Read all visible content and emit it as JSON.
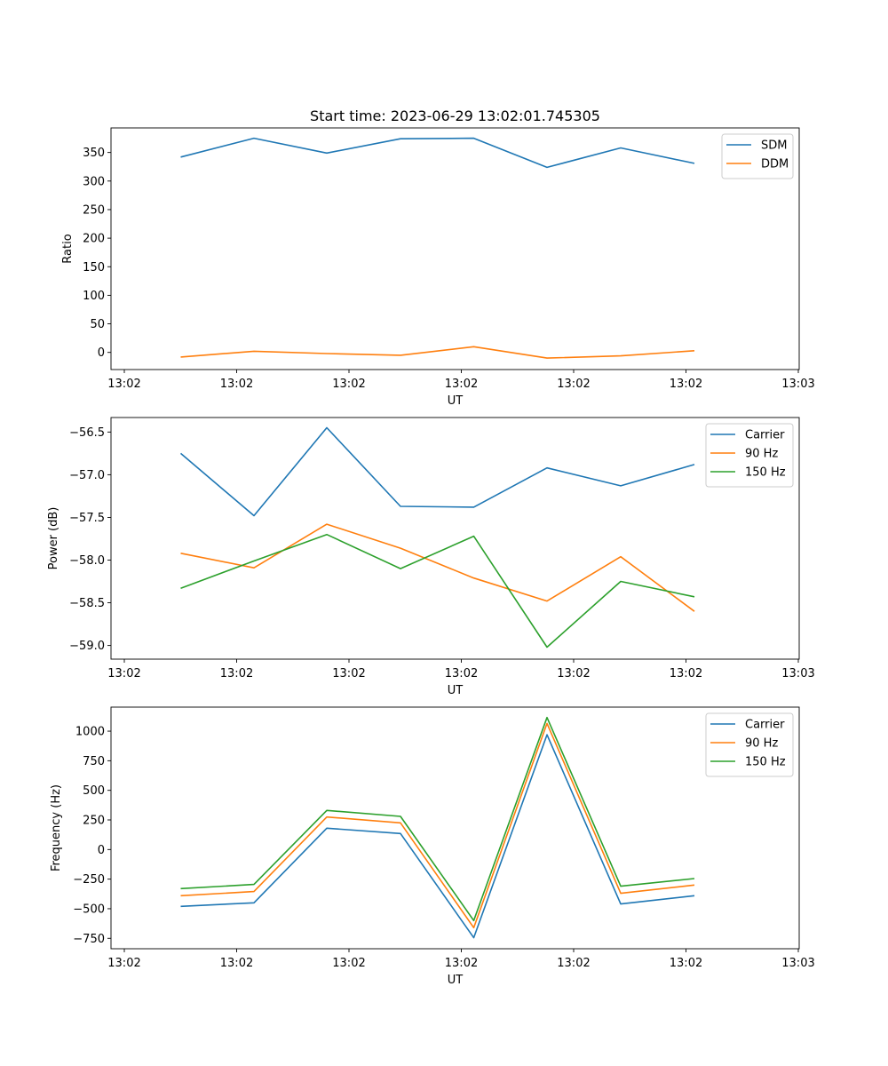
{
  "figure": {
    "title": "Start time: 2023-06-29 13:02:01.745305"
  },
  "chart_data": [
    {
      "type": "line",
      "title": "Start time: 2023-06-29 13:02:01.745305",
      "xlabel": "UT",
      "ylabel": "Ratio",
      "x_tick_labels": [
        "13:02",
        "13:02",
        "13:02",
        "13:02",
        "13:02",
        "13:02",
        "13:03"
      ],
      "ylim": [
        -30,
        393
      ],
      "yticks": [
        0,
        50,
        100,
        150,
        200,
        250,
        300,
        350
      ],
      "ytick_labels": [
        "0",
        "50",
        "100",
        "150",
        "200",
        "250",
        "300",
        "350"
      ],
      "legend_position": "upper right",
      "series": [
        {
          "name": "SDM",
          "color": "#1f77b4",
          "values": [
            342,
            375,
            349,
            374,
            375,
            324,
            358,
            331
          ]
        },
        {
          "name": "DDM",
          "color": "#ff7f0e",
          "values": [
            -8,
            2,
            -2,
            -5,
            10,
            -10,
            -6,
            3
          ]
        }
      ]
    },
    {
      "type": "line",
      "title": "",
      "xlabel": "UT",
      "ylabel": "Power (dB)",
      "x_tick_labels": [
        "13:02",
        "13:02",
        "13:02",
        "13:02",
        "13:02",
        "13:02",
        "13:03"
      ],
      "ylim": [
        -59.16,
        -56.33
      ],
      "yticks": [
        -59.0,
        -58.5,
        -58.0,
        -57.5,
        -57.0,
        -56.5
      ],
      "ytick_labels": [
        "−59.0",
        "−58.5",
        "−58.0",
        "−57.5",
        "−57.0",
        "−56.5"
      ],
      "legend_position": "upper right",
      "series": [
        {
          "name": "Carrier",
          "color": "#1f77b4",
          "values": [
            -56.75,
            -57.48,
            -56.45,
            -57.37,
            -57.38,
            -56.92,
            -57.13,
            -56.88
          ]
        },
        {
          "name": "90 Hz",
          "color": "#ff7f0e",
          "values": [
            -57.92,
            -58.09,
            -57.58,
            -57.86,
            -58.21,
            -58.48,
            -57.96,
            -58.6
          ]
        },
        {
          "name": "150 Hz",
          "color": "#2ca02c",
          "values": [
            -58.33,
            -58.01,
            -57.7,
            -58.1,
            -57.72,
            -59.02,
            -58.25,
            -58.43
          ]
        }
      ]
    },
    {
      "type": "line",
      "title": "",
      "xlabel": "UT",
      "ylabel": "Frequency (Hz)",
      "x_tick_labels": [
        "13:02",
        "13:02",
        "13:02",
        "13:02",
        "13:02",
        "13:02",
        "13:03"
      ],
      "ylim": [
        -838,
        1203
      ],
      "yticks": [
        -750,
        -500,
        -250,
        0,
        250,
        500,
        750,
        1000
      ],
      "ytick_labels": [
        "−750",
        "−500",
        "−250",
        "0",
        "250",
        "500",
        "750",
        "1000"
      ],
      "legend_position": "upper right",
      "series": [
        {
          "name": "Carrier",
          "color": "#1f77b4",
          "values": [
            -480,
            -450,
            180,
            135,
            -745,
            970,
            -460,
            -390
          ]
        },
        {
          "name": "90 Hz",
          "color": "#ff7f0e",
          "values": [
            -390,
            -355,
            275,
            225,
            -660,
            1065,
            -370,
            -300
          ]
        },
        {
          "name": "150 Hz",
          "color": "#2ca02c",
          "values": [
            -330,
            -295,
            330,
            280,
            -600,
            1115,
            -310,
            -245
          ]
        }
      ]
    }
  ]
}
